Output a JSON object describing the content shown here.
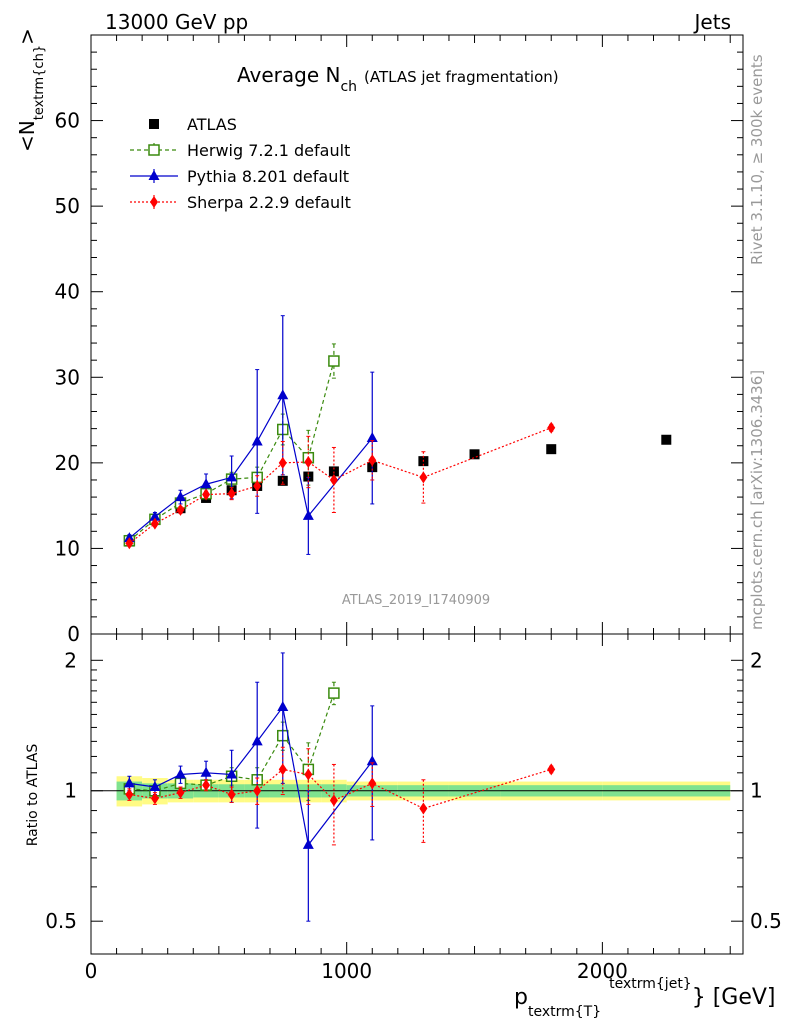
{
  "header": {
    "left": "13000 GeV pp",
    "right": "Jets"
  },
  "side_labels": {
    "rivet": "Rivet 3.1.10, ≥ 300k events",
    "mcplots": "mcplots.cern.ch [arXiv:1306.3436]"
  },
  "watermark": "ATLAS_2019_I1740909",
  "title_main": "Average N",
  "title_sub": "ch",
  "title_rest": "(ATLAS jet fragmentation)",
  "ylabel_top": "<N",
  "ylabel_top_sub": "textrm{ch}",
  "ylabel_top_close": ">",
  "ylabel_bottom": "Ratio to ATLAS",
  "xlabel_p": "p",
  "xlabel_sub": "textrm{T}",
  "xlabel_sup": "textrm{jet}",
  "xlabel_unit": "} [GeV]",
  "colors": {
    "atlas": "#000000",
    "herwig": "#3a8a0e",
    "pythia": "#0000cc",
    "sherpa": "#ff0000",
    "band_inner": "#7fe28f",
    "band_outer": "#fffb85"
  },
  "chart_data": [
    {
      "type": "scatter",
      "panel": "main",
      "xlim": [
        0,
        2550
      ],
      "ylim": [
        0,
        70
      ],
      "yticks": [
        0,
        10,
        20,
        30,
        40,
        50,
        60
      ],
      "ytick_labels": [
        "0",
        "10",
        "20",
        "30",
        "40",
        "50",
        "60"
      ],
      "legend_position": "top-left",
      "series": [
        {
          "name": "ATLAS",
          "style": "square-filled",
          "x": [
            150,
            250,
            350,
            450,
            550,
            650,
            750,
            850,
            950,
            1100,
            1300,
            1500,
            1800,
            2250
          ],
          "y": [
            10.8,
            13.4,
            14.7,
            15.9,
            16.8,
            17.3,
            17.9,
            18.4,
            19.0,
            19.5,
            20.2,
            21.0,
            21.6,
            22.7
          ],
          "err": [
            0.5,
            0.5,
            0.5,
            0.5,
            0.5,
            0.5,
            0.5,
            0.5,
            0.5,
            0.5,
            0.5,
            0.5,
            0.5,
            0.5
          ]
        },
        {
          "name": "Herwig 7.2.1 default",
          "style": "square-open-dashed",
          "x": [
            150,
            250,
            350,
            450,
            550,
            650,
            750,
            850,
            950
          ],
          "y": [
            10.9,
            13.4,
            15.3,
            16.4,
            18.1,
            18.3,
            23.9,
            20.6,
            31.9
          ],
          "err": [
            0.3,
            0.3,
            0.4,
            0.5,
            0.8,
            1.2,
            1.8,
            3.2,
            2.0
          ]
        },
        {
          "name": "Pythia 8.201 default",
          "style": "triangle-solid",
          "x": [
            150,
            250,
            350,
            450,
            550,
            650,
            750,
            850,
            1100
          ],
          "y": [
            11.2,
            13.7,
            16.0,
            17.5,
            18.3,
            22.5,
            27.9,
            13.8,
            22.9
          ],
          "err": [
            0.4,
            0.5,
            0.8,
            1.2,
            2.5,
            8.4,
            9.3,
            4.5,
            7.7
          ]
        },
        {
          "name": "Sherpa 2.2.9 default",
          "style": "diamond-dotted",
          "x": [
            150,
            250,
            350,
            450,
            550,
            650,
            750,
            850,
            950,
            1100,
            1300,
            1800
          ],
          "y": [
            10.6,
            12.9,
            14.5,
            16.3,
            16.4,
            17.3,
            20.0,
            20.1,
            18.0,
            20.3,
            18.3,
            24.1
          ],
          "err": [
            0.3,
            0.3,
            0.4,
            0.4,
            0.7,
            1.2,
            2.5,
            3.0,
            3.8,
            2.3,
            3.0,
            0.4
          ]
        }
      ]
    },
    {
      "type": "scatter",
      "panel": "ratio",
      "xlim": [
        0,
        2550
      ],
      "ylim": [
        0.42,
        2.3
      ],
      "log_y": true,
      "xticks": [
        0,
        1000,
        2000
      ],
      "xtick_labels": [
        "0",
        "1000",
        "2000"
      ],
      "yticks": [
        0.5,
        1,
        2
      ],
      "ytick_labels": [
        "0.5",
        "1",
        "2"
      ],
      "band": {
        "x_edges": [
          100,
          200,
          300,
          400,
          500,
          600,
          700,
          800,
          900,
          1000,
          1200,
          1400,
          1600,
          2000,
          2500
        ],
        "inner": [
          0.05,
          0.04,
          0.04,
          0.035,
          0.035,
          0.035,
          0.035,
          0.035,
          0.035,
          0.03,
          0.03,
          0.03,
          0.03,
          0.03
        ],
        "outer": [
          0.08,
          0.07,
          0.06,
          0.06,
          0.06,
          0.06,
          0.06,
          0.06,
          0.06,
          0.05,
          0.05,
          0.05,
          0.05,
          0.05
        ]
      },
      "series": [
        {
          "name": "Herwig 7.2.1 default",
          "x": [
            150,
            250,
            350,
            450,
            550,
            650,
            750,
            850,
            950
          ],
          "y": [
            1.01,
            1.0,
            1.04,
            1.03,
            1.08,
            1.06,
            1.34,
            1.12,
            1.68
          ],
          "err": [
            0.03,
            0.03,
            0.03,
            0.03,
            0.05,
            0.07,
            0.1,
            0.17,
            0.1
          ]
        },
        {
          "name": "Pythia 8.201 default",
          "x": [
            150,
            250,
            350,
            450,
            550,
            650,
            750,
            850,
            1100
          ],
          "y": [
            1.04,
            1.02,
            1.09,
            1.1,
            1.09,
            1.3,
            1.56,
            0.75,
            1.17
          ],
          "err": [
            0.04,
            0.04,
            0.05,
            0.07,
            0.15,
            0.48,
            0.52,
            0.25,
            0.4
          ]
        },
        {
          "name": "Sherpa 2.2.9 default",
          "x": [
            150,
            250,
            350,
            450,
            550,
            650,
            750,
            850,
            950,
            1100,
            1300,
            1800
          ],
          "y": [
            0.98,
            0.96,
            0.99,
            1.03,
            0.98,
            1.0,
            1.12,
            1.09,
            0.95,
            1.04,
            0.91,
            1.12
          ],
          "err": [
            0.03,
            0.03,
            0.03,
            0.03,
            0.04,
            0.07,
            0.14,
            0.16,
            0.2,
            0.12,
            0.15,
            0.02
          ]
        }
      ]
    }
  ]
}
